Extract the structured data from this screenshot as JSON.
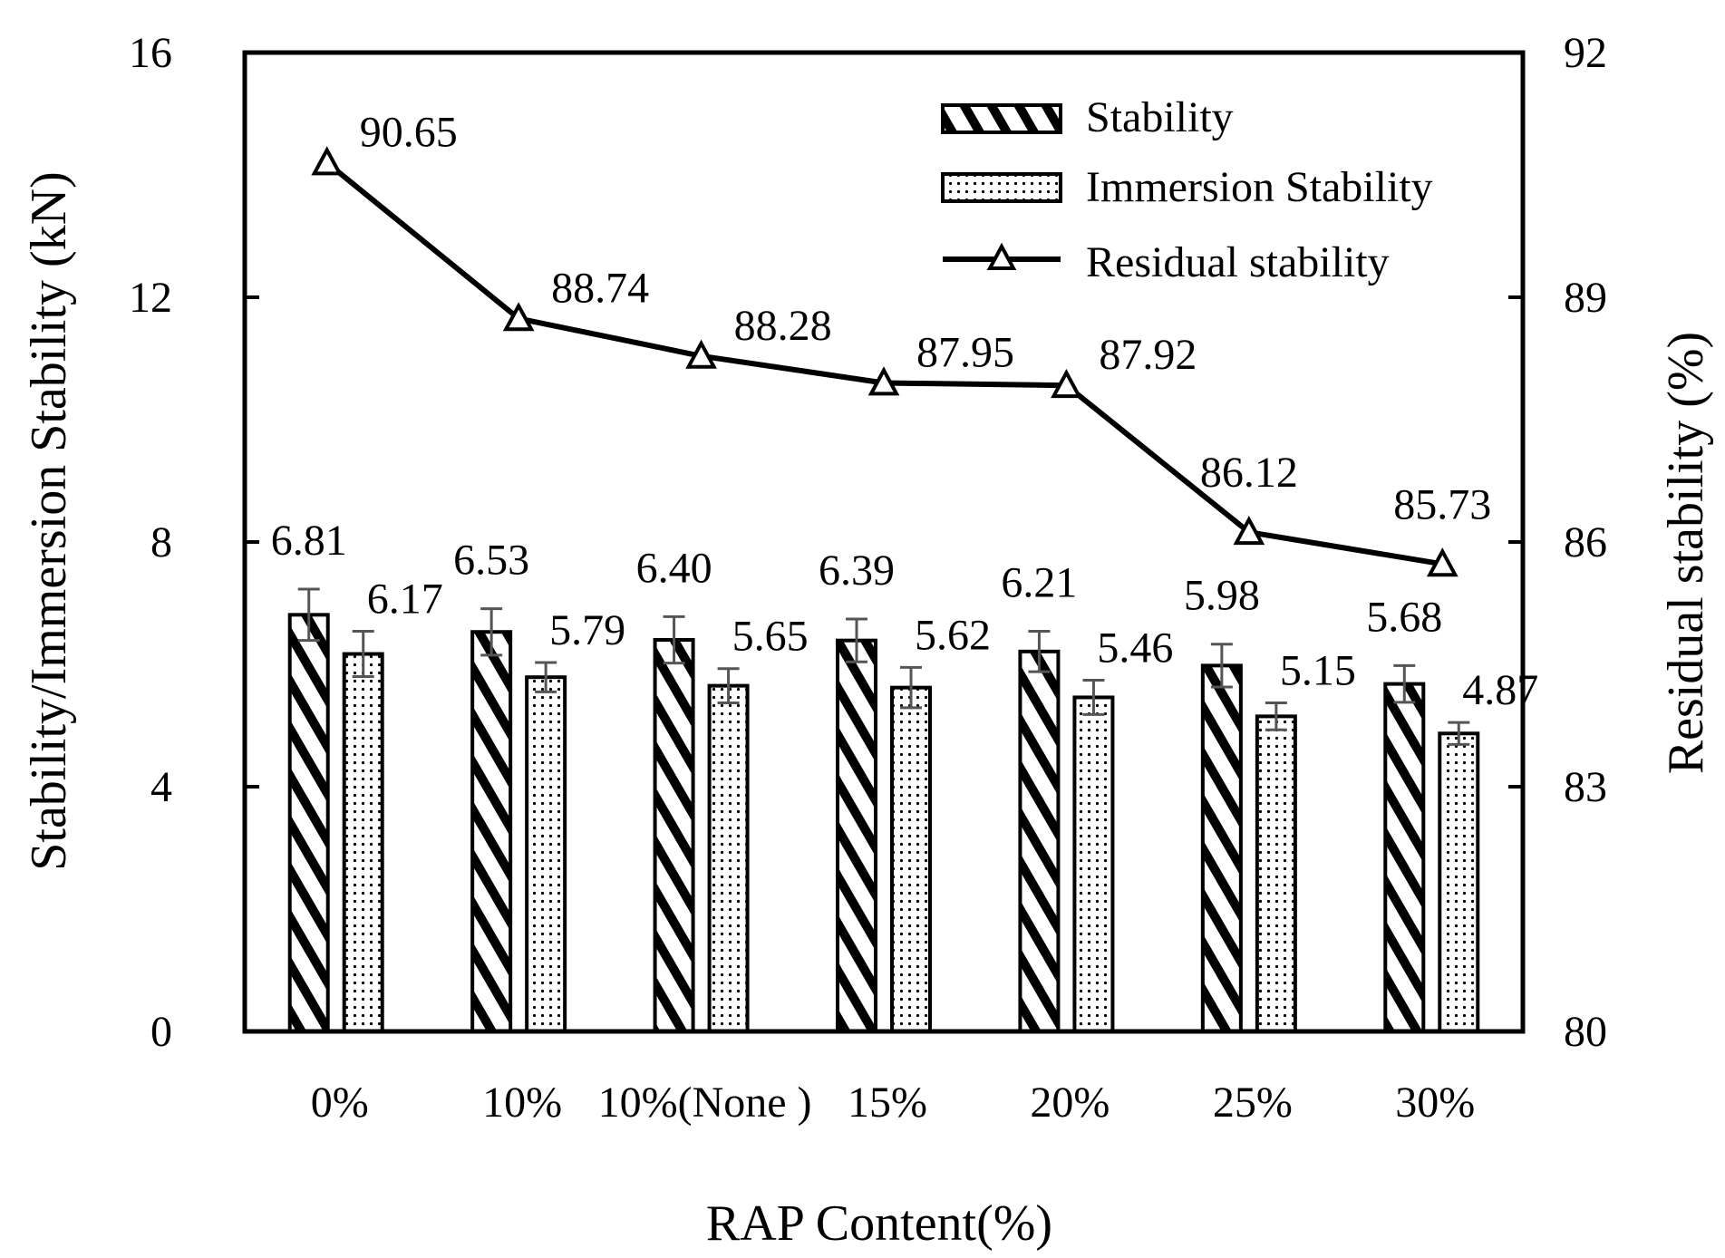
{
  "chart_data": {
    "type": "bar",
    "categories": [
      "0%",
      "10%",
      "10%(None )",
      "15%",
      "20%",
      "25%",
      "30%"
    ],
    "series": [
      {
        "name": "Stability",
        "kind": "bar",
        "axis": "left",
        "pattern": "hatch",
        "values": [
          6.81,
          6.53,
          6.4,
          6.39,
          6.21,
          5.98,
          5.68
        ],
        "errors": [
          0.42,
          0.38,
          0.38,
          0.35,
          0.33,
          0.35,
          0.3
        ],
        "labels": [
          "6.81",
          "6.53",
          "6.40",
          "6.39",
          "6.21",
          "5.98",
          "5.68"
        ]
      },
      {
        "name": "Immersion Stability",
        "kind": "bar",
        "axis": "left",
        "pattern": "dots",
        "values": [
          6.17,
          5.79,
          5.65,
          5.62,
          5.46,
          5.15,
          4.87
        ],
        "errors": [
          0.37,
          0.24,
          0.28,
          0.33,
          0.28,
          0.22,
          0.18
        ],
        "labels": [
          "6.17",
          "5.79",
          "5.65",
          "5.62",
          "5.46",
          "5.15",
          "4.87"
        ]
      },
      {
        "name": "Residual stability",
        "kind": "line",
        "axis": "right",
        "marker": "triangle",
        "values": [
          90.65,
          88.74,
          88.28,
          87.95,
          87.92,
          86.12,
          85.73
        ],
        "labels": [
          "90.65",
          "88.74",
          "88.28",
          "87.95",
          "87.92",
          "86.12",
          "85.73"
        ]
      }
    ],
    "xlabel": "RAP Content(%)",
    "ylabel": "Stability/Immersion Stability (kN)",
    "y2label": "Residual stability (%)",
    "ylim": [
      0,
      16
    ],
    "y2lim": [
      80,
      92
    ],
    "yticks": [
      "0",
      "4",
      "8",
      "12",
      "16"
    ],
    "y2ticks": [
      "80",
      "83",
      "86",
      "89",
      "92"
    ],
    "grid": false,
    "legend": "top-right"
  }
}
